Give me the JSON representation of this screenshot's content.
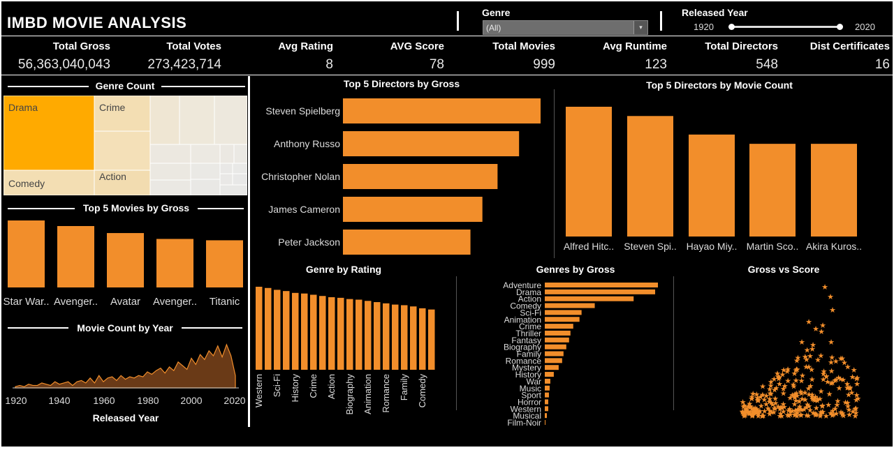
{
  "title": "IMBD MOVIE ANALYSIS",
  "filters": {
    "genre_label": "Genre",
    "genre_value": "(All)",
    "year_label": "Released Year",
    "year_min": "1920",
    "year_max": "2020"
  },
  "kpis": [
    {
      "label": "Total Gross",
      "value": "56,363,040,043"
    },
    {
      "label": "Total Votes",
      "value": "273,423,714"
    },
    {
      "label": "Avg Rating",
      "value": "8"
    },
    {
      "label": "AVG Score",
      "value": "78"
    },
    {
      "label": "Total Movies",
      "value": "999"
    },
    {
      "label": "Avg Runtime",
      "value": "123"
    },
    {
      "label": "Total Directors",
      "value": "548"
    },
    {
      "label": "Dist Certificates",
      "value": "16"
    }
  ],
  "colors": {
    "accent": "#f28e2b",
    "treemap_top": "#ffaa00",
    "treemap_mid": "#f3deb3",
    "treemap_light": "#ede9e0"
  },
  "chart_data": [
    {
      "id": "genre_count",
      "type": "heatmap",
      "title": "Genre Count",
      "labels": [
        "Drama",
        "Crime",
        "Comedy",
        "Action"
      ]
    },
    {
      "id": "top_movies",
      "type": "bar",
      "title": "Top 5 Movies by Gross",
      "categories": [
        "Star War..",
        "Avenger..",
        "Avatar",
        "Avenger..",
        "Titanic"
      ],
      "values": [
        936,
        858,
        760,
        678,
        659
      ]
    },
    {
      "id": "movie_count_year",
      "type": "area",
      "title": "Movie Count by Year",
      "xlabel": "Released Year",
      "xticks": [
        "1920",
        "1940",
        "1960",
        "1980",
        "2000",
        "2020"
      ],
      "x": [
        1920,
        1922,
        1924,
        1926,
        1928,
        1930,
        1932,
        1934,
        1936,
        1938,
        1940,
        1942,
        1944,
        1946,
        1948,
        1950,
        1952,
        1954,
        1956,
        1958,
        1960,
        1962,
        1964,
        1966,
        1968,
        1970,
        1972,
        1974,
        1976,
        1978,
        1980,
        1982,
        1984,
        1986,
        1988,
        1990,
        1992,
        1994,
        1996,
        1998,
        2000,
        2002,
        2004,
        2006,
        2008,
        2010,
        2012,
        2014,
        2016,
        2018,
        2020
      ],
      "values": [
        1,
        2,
        1,
        3,
        2,
        2,
        4,
        3,
        2,
        5,
        3,
        4,
        5,
        2,
        5,
        6,
        4,
        8,
        4,
        10,
        5,
        8,
        9,
        6,
        10,
        7,
        9,
        8,
        10,
        9,
        13,
        11,
        14,
        16,
        12,
        17,
        14,
        21,
        18,
        15,
        24,
        19,
        27,
        23,
        30,
        26,
        34,
        25,
        35,
        26,
        10
      ]
    },
    {
      "id": "top_directors_gross",
      "type": "bar",
      "title": "Top 5 Directors by Gross",
      "categories": [
        "Steven Spielberg",
        "Anthony Russo",
        "Christopher Nolan",
        "James Cameron",
        "Peter Jackson"
      ],
      "values": [
        2480,
        2210,
        1940,
        1750,
        1600
      ]
    },
    {
      "id": "top_directors_count",
      "type": "bar",
      "title": "Top 5 Directors by Movie Count",
      "categories": [
        "Alfred Hitc..",
        "Steven Spi..",
        "Hayao Miy..",
        "Martin Sco..",
        "Akira Kuros.."
      ],
      "values": [
        14,
        13,
        11,
        10,
        10
      ]
    },
    {
      "id": "genre_rating",
      "type": "bar",
      "title": "Genre by Rating",
      "categories": [
        "Western",
        "",
        "Sci-Fi",
        "",
        "History",
        "",
        "Crime",
        "",
        "Action",
        "",
        "Biography",
        "",
        "Animation",
        "",
        "Romance",
        "",
        "Family",
        "",
        "Comedy",
        ""
      ],
      "values": [
        8.35,
        8.33,
        8.3,
        8.28,
        8.25,
        8.24,
        8.22,
        8.2,
        8.18,
        8.17,
        8.15,
        8.14,
        8.12,
        8.1,
        8.08,
        8.06,
        8.05,
        8.03,
        8.0,
        7.98
      ]
    },
    {
      "id": "genres_gross",
      "type": "bar",
      "title": "Genres by Gross",
      "categories": [
        "Adventure",
        "Drama",
        "Action",
        "Comedy",
        "Sci-Fi",
        "Animation",
        "Crime",
        "Thriller",
        "Fantasy",
        "Biography",
        "Family",
        "Romance",
        "Mystery",
        "History",
        "War",
        "Music",
        "Sport",
        "Horror",
        "Western",
        "Musical",
        "Film-Noir"
      ],
      "values": [
        163,
        159,
        128,
        72,
        53,
        50,
        41,
        37,
        35,
        31,
        27,
        25,
        20,
        13,
        8,
        7,
        6,
        5,
        5,
        3,
        1
      ]
    },
    {
      "id": "gross_vs_score",
      "type": "scatter",
      "title": "Gross vs Score"
    }
  ]
}
